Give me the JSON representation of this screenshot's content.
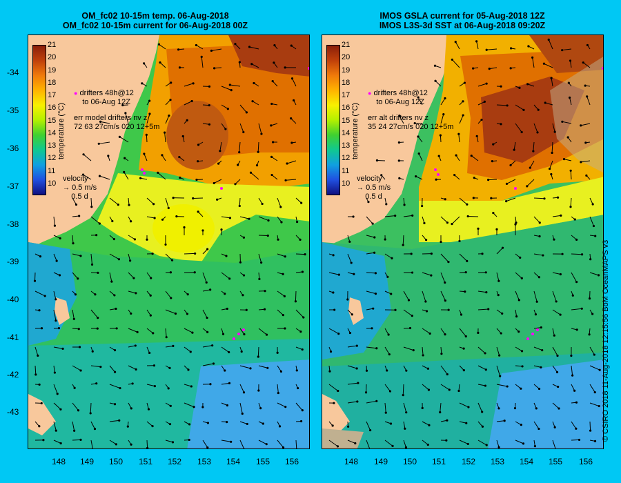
{
  "left": {
    "title1": "OM_fc02 10-15m temp. 06-Aug-2018",
    "title2": "OM_fc02 10-15m current for 06-Aug-2018 00Z",
    "legend_drifters1": "drifters 48h@12",
    "legend_drifters2": "to 06-Aug 12Z",
    "legend_err1": "err model drifters nv z",
    "legend_err2": "72 63 27cm/s 020 12+5m",
    "velocity_label": "velocity",
    "velocity_scale": "0.5 m/s",
    "velocity_days": "0.5 d"
  },
  "right": {
    "title1": "IMOS GSLA current for 05-Aug-2018 12Z",
    "title2": "IMOS L3S-3d SST at 06-Aug-2018 09:20Z",
    "legend_drifters1": "drifters 48h@12",
    "legend_drifters2": "to 06-Aug 12Z",
    "legend_err1": "err alt drifters nv z",
    "legend_err2": "35 24 27cm/s 020 12+5m",
    "velocity_label": "velocity",
    "velocity_scale": "0.5 m/s",
    "velocity_days": "0.5 d"
  },
  "colorbar": {
    "label": "temperature (°C)",
    "ticks": [
      "21",
      "20",
      "19",
      "18",
      "17",
      "16",
      "15",
      "14",
      "13",
      "12",
      "11",
      "10"
    ]
  },
  "lat_labels": [
    "-34",
    "-35",
    "-36",
    "-37",
    "-38",
    "-39",
    "-40",
    "-41",
    "-42",
    "-43"
  ],
  "lon_labels": [
    "148",
    "149",
    "150",
    "151",
    "152",
    "153",
    "154",
    "155",
    "156"
  ],
  "credit": "© CSIRO 2018   11-Aug-2018 12:15:56 BoM OceanMAPS v3",
  "colors": {
    "background": "#00c8f4",
    "land": "#f8c89c",
    "drifter": "#ff00ff"
  }
}
